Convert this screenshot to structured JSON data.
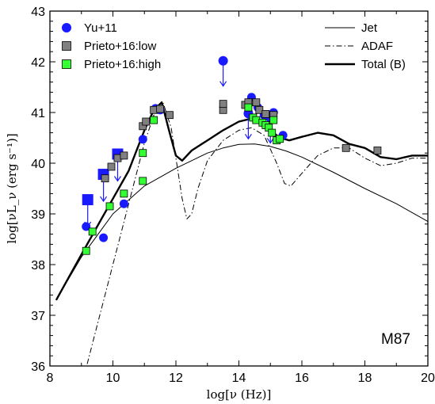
{
  "chart_data": {
    "type": "scatter",
    "title": "",
    "annotation": "M87",
    "xlabel": "log[ν (Hz)]",
    "ylabel": "log[νL_ν (erg s⁻¹)]",
    "xlim": [
      8,
      20
    ],
    "ylim": [
      36,
      43
    ],
    "xticks": [
      8,
      10,
      12,
      14,
      16,
      18,
      20
    ],
    "yticks": [
      36,
      37,
      38,
      39,
      40,
      41,
      42,
      43
    ],
    "grid": false,
    "legend_left_position": "top-left",
    "legend_right_position": "top-right",
    "scatter_series": [
      {
        "name": "Yu+11",
        "marker": "circle",
        "color": "#1a1aff",
        "points": [
          [
            9.15,
            38.75
          ],
          [
            9.7,
            38.53
          ],
          [
            10.35,
            39.2
          ],
          [
            10.95,
            40.47
          ],
          [
            11.35,
            41.08
          ],
          [
            11.5,
            41.05
          ],
          [
            14.3,
            41.0
          ],
          [
            14.4,
            41.3
          ],
          [
            14.6,
            41.1
          ],
          [
            14.8,
            40.95
          ],
          [
            15.0,
            40.9
          ],
          [
            15.1,
            41.0
          ],
          [
            15.4,
            40.55
          ]
        ]
      },
      {
        "name": "Prieto+16:low",
        "marker": "square",
        "color": "#808080",
        "points": [
          [
            9.75,
            39.7
          ],
          [
            9.95,
            39.93
          ],
          [
            10.15,
            40.1
          ],
          [
            10.35,
            40.15
          ],
          [
            10.95,
            40.73
          ],
          [
            11.05,
            40.82
          ],
          [
            11.3,
            41.05
          ],
          [
            11.5,
            41.07
          ],
          [
            11.8,
            40.95
          ],
          [
            13.5,
            41.05
          ],
          [
            13.5,
            41.17
          ],
          [
            14.2,
            41.15
          ],
          [
            14.3,
            41.2
          ],
          [
            14.55,
            41.2
          ],
          [
            14.65,
            41.05
          ],
          [
            14.85,
            40.97
          ],
          [
            15.1,
            40.95
          ],
          [
            17.4,
            40.3
          ],
          [
            18.4,
            40.25
          ]
        ]
      },
      {
        "name": "Prieto+16:high",
        "marker": "square",
        "color": "#33ff33",
        "points": [
          [
            9.15,
            38.27
          ],
          [
            9.35,
            38.65
          ],
          [
            9.9,
            39.15
          ],
          [
            10.35,
            39.4
          ],
          [
            10.95,
            39.65
          ],
          [
            10.95,
            40.2
          ],
          [
            11.3,
            40.85
          ],
          [
            14.3,
            41.1
          ],
          [
            14.45,
            40.9
          ],
          [
            14.55,
            40.85
          ],
          [
            14.75,
            40.8
          ],
          [
            14.85,
            40.75
          ],
          [
            14.95,
            40.7
          ],
          [
            15.05,
            40.6
          ],
          [
            15.1,
            40.85
          ],
          [
            15.2,
            40.45
          ],
          [
            15.3,
            40.48
          ]
        ]
      }
    ],
    "upper_limits": [
      {
        "x": 9.2,
        "y": 39.28,
        "marker": "square",
        "color": "#1a1aff"
      },
      {
        "x": 9.7,
        "y": 39.78,
        "marker": "square",
        "color": "#1a1aff"
      },
      {
        "x": 10.15,
        "y": 40.18,
        "marker": "square",
        "color": "#1a1aff"
      },
      {
        "x": 13.5,
        "y": 42.02,
        "marker": "circle",
        "color": "#1a1aff"
      },
      {
        "x": 14.3,
        "y": 40.98,
        "marker": "circle",
        "color": "#1a1aff"
      },
      {
        "x": 15.0,
        "y": 40.9,
        "marker": "circle",
        "color": "#1a1aff"
      }
    ],
    "line_series": [
      {
        "name": "Jet",
        "style": "solid",
        "width": 1,
        "x": [
          8.2,
          9,
          10,
          11,
          12,
          12.5,
          13,
          13.5,
          14,
          14.5,
          15,
          15.5,
          16,
          17,
          18,
          19,
          20
        ],
        "y": [
          37.3,
          38.15,
          39.0,
          39.55,
          39.9,
          40.05,
          40.2,
          40.3,
          40.37,
          40.38,
          40.33,
          40.24,
          40.12,
          39.82,
          39.5,
          39.2,
          38.85
        ]
      },
      {
        "name": "ADAF",
        "style": "dashdot",
        "width": 1,
        "x": [
          9.0,
          9.5,
          10.0,
          10.5,
          11.0,
          11.3,
          11.6,
          11.85,
          12.05,
          12.2,
          12.35,
          12.5,
          12.7,
          13.0,
          13.5,
          14.0,
          14.4,
          14.8,
          15.2,
          15.45,
          15.65,
          16.0,
          16.5,
          17.0,
          17.5,
          18.0,
          18.5,
          19.0,
          19.5,
          20.0
        ],
        "y": [
          35.6,
          36.8,
          38.0,
          39.2,
          40.4,
          40.95,
          41.18,
          40.7,
          39.9,
          39.3,
          38.9,
          39.0,
          39.5,
          40.05,
          40.45,
          40.65,
          40.7,
          40.55,
          40.0,
          39.6,
          39.55,
          39.8,
          40.15,
          40.3,
          40.3,
          40.1,
          39.95,
          40.0,
          40.1,
          40.1
        ]
      },
      {
        "name": "Total (B)",
        "style": "solid",
        "width": 2.4,
        "x": [
          8.2,
          9.0,
          9.5,
          10.0,
          10.5,
          11.0,
          11.3,
          11.55,
          11.8,
          12.0,
          12.2,
          12.5,
          13.0,
          13.5,
          14.0,
          14.4,
          14.7,
          15.0,
          15.3,
          15.6,
          16.0,
          16.5,
          17.0,
          17.5,
          18.0,
          18.5,
          19.0,
          19.5,
          20.0
        ],
        "y": [
          37.3,
          38.2,
          38.75,
          39.3,
          39.85,
          40.65,
          41.05,
          41.2,
          40.6,
          40.15,
          40.05,
          40.25,
          40.45,
          40.65,
          40.82,
          40.88,
          40.82,
          40.65,
          40.5,
          40.45,
          40.52,
          40.6,
          40.55,
          40.38,
          40.3,
          40.12,
          40.08,
          40.15,
          40.15
        ]
      }
    ]
  }
}
